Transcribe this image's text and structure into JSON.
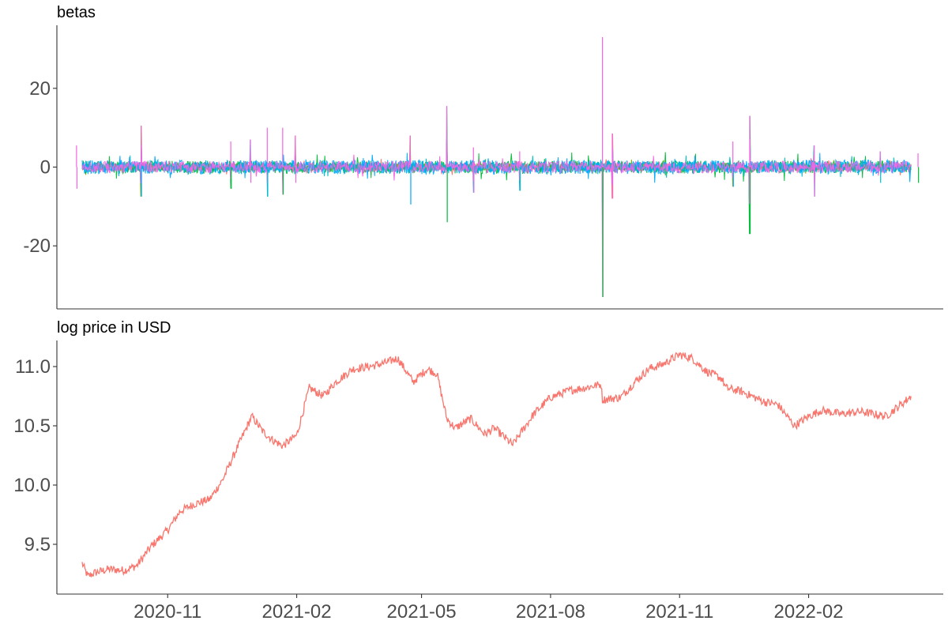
{
  "chart_data": [
    {
      "id": "betas",
      "type": "line",
      "title": "betas",
      "xlabel": "",
      "ylabel": "",
      "ylim": [
        -36,
        36
      ],
      "yticks": [
        -20,
        0,
        20
      ],
      "xlim": [
        "2020-08-14",
        "2022-05-08"
      ],
      "grid": false,
      "legend": "none",
      "series_colors": [
        "#F8766D",
        "#7CAE00",
        "#00BA38",
        "#00BFC4",
        "#00A9FF",
        "#F564E3"
      ],
      "spikes": [
        {
          "date": "2020-08-28",
          "high": 5.5,
          "low": -5.5
        },
        {
          "date": "2020-10-13",
          "high": 10.5,
          "low": -7.5
        },
        {
          "date": "2020-12-16",
          "high": 6.5,
          "low": -5.5
        },
        {
          "date": "2020-12-30",
          "high": 7.0,
          "low": -4.0
        },
        {
          "date": "2021-01-11",
          "high": 10.0,
          "low": -7.5
        },
        {
          "date": "2021-01-22",
          "high": 10.0,
          "low": -7.0
        },
        {
          "date": "2021-01-31",
          "high": 8.0,
          "low": -4.0
        },
        {
          "date": "2021-04-23",
          "high": 8.0,
          "low": -9.5
        },
        {
          "date": "2021-05-19",
          "high": 15.5,
          "low": -14.0
        },
        {
          "date": "2021-06-07",
          "high": 5.0,
          "low": -6.5
        },
        {
          "date": "2021-07-10",
          "high": 4.0,
          "low": -6.0
        },
        {
          "date": "2021-09-07",
          "high": 33.0,
          "low": -33.0
        },
        {
          "date": "2021-09-14",
          "high": 8.5,
          "low": -8.0
        },
        {
          "date": "2021-12-09",
          "high": 6.5,
          "low": -5.0
        },
        {
          "date": "2021-12-21",
          "high": 13.0,
          "low": -17.0
        },
        {
          "date": "2022-02-05",
          "high": 5.5,
          "low": -7.5
        },
        {
          "date": "2022-03-24",
          "high": 4.0,
          "low": -4.0
        },
        {
          "date": "2022-04-20",
          "high": 3.5,
          "low": -4.0
        }
      ]
    },
    {
      "id": "log_price",
      "type": "line",
      "title": "log price in USD",
      "xlabel": "",
      "ylabel": "",
      "ylim": [
        9.08,
        11.22
      ],
      "yticks": [
        9.5,
        10.0,
        10.5,
        11.0
      ],
      "xticks": [
        "2020-11",
        "2021-02",
        "2021-05",
        "2021-08",
        "2021-11",
        "2022-02"
      ],
      "xlim": [
        "2020-08-14",
        "2022-05-08"
      ],
      "grid": false,
      "legend": "none",
      "series": [
        {
          "color": "#F8766D",
          "x": [
            "2020-09-01",
            "2020-09-05",
            "2020-09-10",
            "2020-09-20",
            "2020-10-01",
            "2020-10-10",
            "2020-10-20",
            "2020-11-01",
            "2020-11-10",
            "2020-11-20",
            "2020-12-01",
            "2020-12-10",
            "2020-12-20",
            "2020-12-31",
            "2021-01-08",
            "2021-01-15",
            "2021-01-22",
            "2021-02-01",
            "2021-02-10",
            "2021-02-20",
            "2021-02-28",
            "2021-03-13",
            "2021-03-25",
            "2021-04-05",
            "2021-04-14",
            "2021-04-25",
            "2021-05-05",
            "2021-05-12",
            "2021-05-19",
            "2021-05-25",
            "2021-06-05",
            "2021-06-15",
            "2021-06-22",
            "2021-07-05",
            "2021-07-20",
            "2021-08-01",
            "2021-08-15",
            "2021-08-25",
            "2021-09-06",
            "2021-09-07",
            "2021-09-20",
            "2021-10-01",
            "2021-10-10",
            "2021-10-20",
            "2021-11-01",
            "2021-11-10",
            "2021-11-20",
            "2021-12-01",
            "2021-12-04",
            "2021-12-15",
            "2022-01-01",
            "2022-01-10",
            "2022-01-22",
            "2022-02-01",
            "2022-02-10",
            "2022-02-24",
            "2022-03-10",
            "2022-03-28",
            "2022-04-10",
            "2022-04-15"
          ],
          "y": [
            9.34,
            9.23,
            9.26,
            9.29,
            9.28,
            9.32,
            9.48,
            9.62,
            9.78,
            9.84,
            9.88,
            10.04,
            10.3,
            10.58,
            10.45,
            10.38,
            10.33,
            10.42,
            10.82,
            10.75,
            10.86,
            10.98,
            11.0,
            11.03,
            11.07,
            10.87,
            10.98,
            10.94,
            10.56,
            10.48,
            10.56,
            10.43,
            10.48,
            10.34,
            10.6,
            10.74,
            10.8,
            10.82,
            10.85,
            10.72,
            10.74,
            10.88,
            10.98,
            11.02,
            11.1,
            11.07,
            10.96,
            10.9,
            10.82,
            10.79,
            10.7,
            10.68,
            10.5,
            10.58,
            10.63,
            10.6,
            10.62,
            10.58,
            10.7,
            10.75
          ]
        }
      ]
    }
  ]
}
